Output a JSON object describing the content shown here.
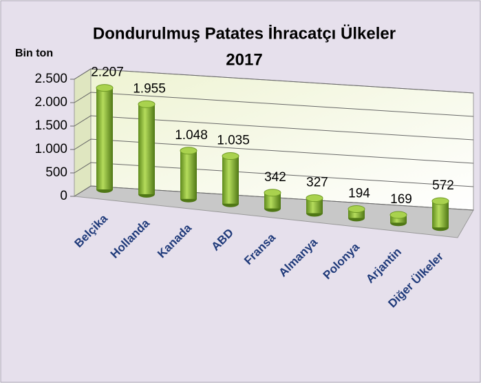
{
  "chart_data": {
    "type": "bar3d",
    "title": "Dondurulmuş Patates İhracatçı Ülkeler",
    "subtitle": "2017",
    "y_label": "Bin ton",
    "categories": [
      "Belçika",
      "Hollanda",
      "Kanada",
      "ABD",
      "Fransa",
      "Almanya",
      "Polonya",
      "Arjantin",
      "Diğer Ülkeler"
    ],
    "values": [
      2207,
      1955,
      1048,
      1035,
      342,
      327,
      194,
      169,
      572
    ],
    "value_labels": [
      "2.207",
      "1.955",
      "1.048",
      "1.035",
      "342",
      "327",
      "194",
      "169",
      "572"
    ],
    "color": "#8db83a",
    "ylim": [
      0,
      2500
    ],
    "yticks": [
      0,
      500,
      {
        "value": 1000,
        "label": "1.000"
      },
      {
        "value": 1500,
        "label": "1.500"
      },
      {
        "value": 2000,
        "label": "2.000"
      },
      {
        "value": 2500,
        "label": "2.500"
      }
    ],
    "grid": true
  }
}
